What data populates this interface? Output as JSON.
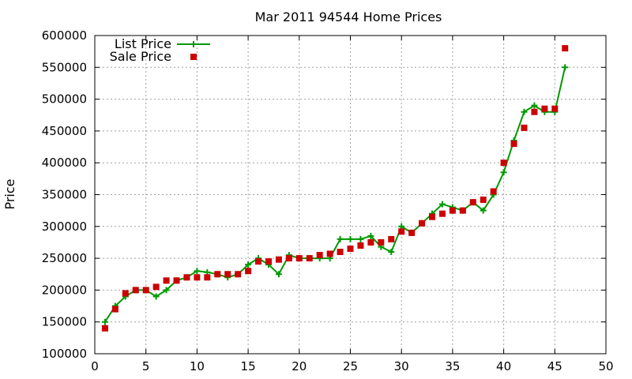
{
  "chart_data": {
    "type": "line",
    "title": "Mar 2011 94544 Home Prices",
    "xlabel": "",
    "ylabel": "Price",
    "xlim": [
      0,
      50
    ],
    "ylim": [
      100000,
      600000
    ],
    "x_ticks": [
      0,
      5,
      10,
      15,
      20,
      25,
      30,
      35,
      40,
      45,
      50
    ],
    "y_ticks": [
      100000,
      150000,
      200000,
      250000,
      300000,
      350000,
      400000,
      450000,
      500000,
      550000,
      600000
    ],
    "grid": true,
    "legend": "top-left",
    "series": [
      {
        "name": "List Price",
        "style": "line+cross",
        "color": "#009900",
        "x": [
          1,
          2,
          3,
          4,
          5,
          6,
          7,
          8,
          9,
          10,
          11,
          12,
          13,
          14,
          15,
          16,
          17,
          18,
          19,
          20,
          21,
          22,
          23,
          24,
          25,
          26,
          27,
          28,
          29,
          30,
          31,
          32,
          33,
          34,
          35,
          36,
          37,
          38,
          39,
          40,
          41,
          42,
          43,
          44,
          45,
          46
        ],
        "y": [
          150000,
          175000,
          190000,
          200000,
          200000,
          190000,
          200000,
          215000,
          220000,
          230000,
          228000,
          225000,
          220000,
          225000,
          240000,
          250000,
          240000,
          225000,
          255000,
          250000,
          250000,
          250000,
          250000,
          280000,
          280000,
          280000,
          285000,
          268000,
          260000,
          300000,
          290000,
          305000,
          320000,
          335000,
          330000,
          325000,
          338000,
          325000,
          350000,
          385000,
          435000,
          480000,
          490000,
          480000,
          480000,
          550000
        ]
      },
      {
        "name": "Sale Price",
        "style": "square",
        "color": "#cc0000",
        "x": [
          1,
          2,
          3,
          4,
          5,
          6,
          7,
          8,
          9,
          10,
          11,
          12,
          13,
          14,
          15,
          16,
          17,
          18,
          19,
          20,
          21,
          22,
          23,
          24,
          25,
          26,
          27,
          28,
          29,
          30,
          31,
          32,
          33,
          34,
          35,
          36,
          37,
          38,
          39,
          40,
          41,
          42,
          43,
          44,
          45,
          46
        ],
        "y": [
          140000,
          170000,
          195000,
          200000,
          200000,
          205000,
          215000,
          215000,
          220000,
          220000,
          220000,
          225000,
          225000,
          225000,
          230000,
          245000,
          245000,
          248000,
          250000,
          250000,
          250000,
          255000,
          257000,
          260000,
          265000,
          270000,
          275000,
          275000,
          280000,
          292000,
          290000,
          305000,
          315000,
          320000,
          325000,
          325000,
          338000,
          342000,
          355000,
          400000,
          430000,
          455000,
          480000,
          485000,
          485000,
          580000
        ]
      }
    ]
  }
}
